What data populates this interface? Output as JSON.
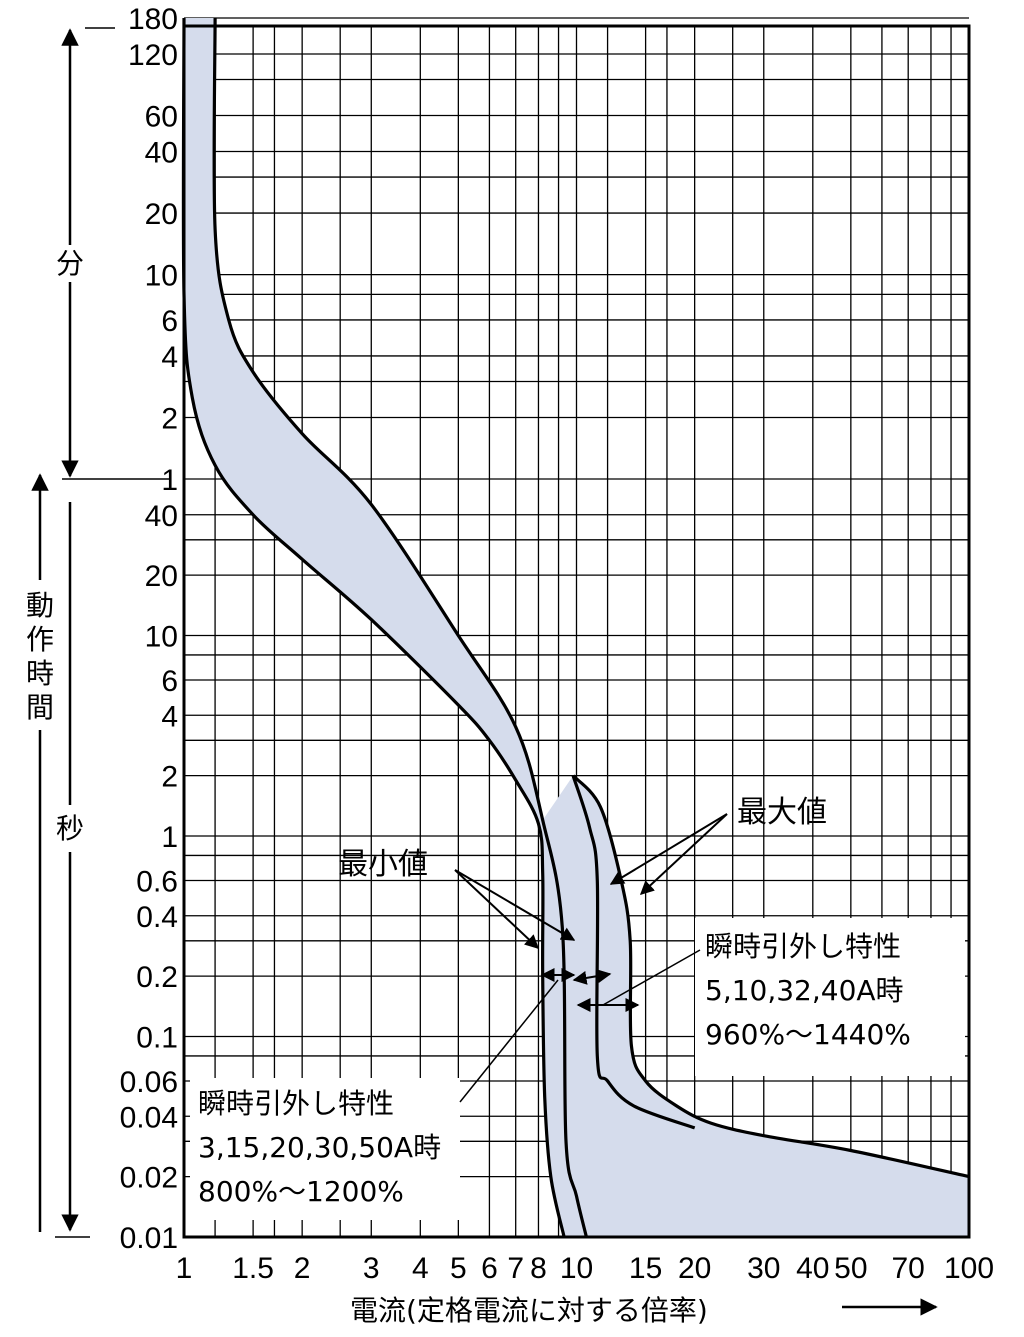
{
  "chart_data": {
    "type": "area",
    "xlabel": "電流(定格電流に対する倍率)",
    "ylabel": "動作時間",
    "x_scale": "log",
    "y_scale": "log",
    "xlim": [
      1,
      100
    ],
    "grid": true,
    "x_ticks": [
      "1",
      "1.5",
      "2",
      "3",
      "4",
      "5",
      "6",
      "7",
      "8",
      "10",
      "15",
      "20",
      "30",
      "40",
      "50",
      "70",
      "100"
    ],
    "y_ticks": [
      {
        "label": "180",
        "unit": "分"
      },
      {
        "label": "120",
        "unit": "分"
      },
      {
        "label": "60",
        "unit": "分"
      },
      {
        "label": "40",
        "unit": "分"
      },
      {
        "label": "20",
        "unit": "分"
      },
      {
        "label": "10",
        "unit": "分"
      },
      {
        "label": "6",
        "unit": "分"
      },
      {
        "label": "4",
        "unit": "分"
      },
      {
        "label": "2",
        "unit": "分"
      },
      {
        "label": "1",
        "unit": "分"
      },
      {
        "label": "40",
        "unit": "秒"
      },
      {
        "label": "20",
        "unit": "秒"
      },
      {
        "label": "10",
        "unit": "秒"
      },
      {
        "label": "6",
        "unit": "秒"
      },
      {
        "label": "4",
        "unit": "秒"
      },
      {
        "label": "2",
        "unit": "秒"
      },
      {
        "label": "1",
        "unit": "秒"
      },
      {
        "label": "0.6",
        "unit": "秒"
      },
      {
        "label": "0.4",
        "unit": "秒"
      },
      {
        "label": "0.2",
        "unit": "秒"
      },
      {
        "label": "0.1",
        "unit": "秒"
      },
      {
        "label": "0.06",
        "unit": "秒"
      },
      {
        "label": "0.04",
        "unit": "秒"
      },
      {
        "label": "0.02",
        "unit": "秒"
      },
      {
        "label": "0.01",
        "unit": "秒"
      }
    ],
    "unit_labels": {
      "minutes": "分",
      "seconds": "秒"
    },
    "series": [
      {
        "name": "最小値",
        "note": "3,15,20,30,50A",
        "points_sec": [
          [
            1.0,
            10800
          ],
          [
            1.0,
            480
          ],
          [
            1.05,
            150
          ],
          [
            1.2,
            70
          ],
          [
            1.5,
            40
          ],
          [
            2.0,
            24
          ],
          [
            3.0,
            12
          ],
          [
            5.0,
            4.5
          ],
          [
            6.0,
            3.0
          ],
          [
            7.0,
            1.9
          ],
          [
            8.0,
            1.15
          ],
          [
            8.2,
            0.65
          ],
          [
            8.2,
            0.2
          ],
          [
            8.3,
            0.05
          ],
          [
            8.6,
            0.02
          ],
          [
            9.3,
            0.01
          ]
        ]
      },
      {
        "name": "最大値",
        "note": "3,15,20,30,50A",
        "points_sec": [
          [
            1.2,
            10800
          ],
          [
            1.2,
            1000
          ],
          [
            1.3,
            360
          ],
          [
            1.5,
            200
          ],
          [
            2.0,
            100
          ],
          [
            3.0,
            45
          ],
          [
            5.0,
            10
          ],
          [
            7.0,
            3.5
          ],
          [
            8.2,
            1.2
          ],
          [
            9.2,
            0.35
          ],
          [
            9.4,
            0.03
          ],
          [
            10.0,
            0.016
          ],
          [
            10.6,
            0.01
          ]
        ]
      },
      {
        "name": "最小値",
        "note": "5,10,32,40A",
        "points_sec": [
          [
            9.8,
            2.0
          ],
          [
            10.8,
            1.1
          ],
          [
            11.3,
            0.6
          ],
          [
            11.3,
            0.08
          ],
          [
            12.0,
            0.06
          ],
          [
            14.0,
            0.045
          ],
          [
            20.0,
            0.035
          ]
        ]
      },
      {
        "name": "最大値",
        "note": "5,10,32,40A",
        "points_sec": [
          [
            9.8,
            2.0
          ],
          [
            11.5,
            1.4
          ],
          [
            13.0,
            0.6
          ],
          [
            13.7,
            0.3
          ],
          [
            13.8,
            0.09
          ],
          [
            15.0,
            0.06
          ],
          [
            18.0,
            0.045
          ],
          [
            22.0,
            0.037
          ],
          [
            30.0,
            0.032
          ],
          [
            50.0,
            0.027
          ],
          [
            100.0,
            0.02
          ]
        ]
      }
    ],
    "annotations": {
      "max_label": "最大値",
      "min_label": "最小値",
      "box1_title": "瞬時引外し特性",
      "box1_line2": "5,10,32,40A時",
      "box1_line3": "960%〜1440%",
      "box2_title": "瞬時引外し特性",
      "box2_line2": "3,15,20,30,50A時",
      "box2_line3": "800%〜1200%"
    },
    "fill_color": "#d5dcec",
    "line_color": "#000000"
  }
}
